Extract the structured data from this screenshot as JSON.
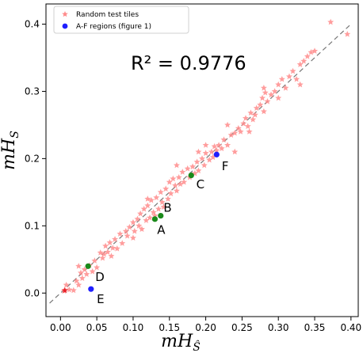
{
  "chart_data": {
    "type": "scatter",
    "xlabel": "mH_Ŝ",
    "ylabel": "mH_S",
    "xlim": [
      -0.02,
      0.41
    ],
    "ylim": [
      -0.035,
      0.43
    ],
    "xticks": [
      "0.00",
      "0.05",
      "0.10",
      "0.15",
      "0.20",
      "0.25",
      "0.30",
      "0.35",
      "0.40"
    ],
    "yticks": [
      "0.0",
      "0.1",
      "0.2",
      "0.3",
      "0.4"
    ],
    "annotation": "R² = 0.9776",
    "legend": {
      "placement": "top-left",
      "entries": [
        "Random test tiles",
        "A-F regions (figure 1)"
      ]
    },
    "reference_line": {
      "from": [
        -0.015,
        -0.015
      ],
      "to": [
        0.4,
        0.4
      ],
      "style": "dashed",
      "color": "#777777"
    },
    "series": [
      {
        "name": "Random test tiles",
        "marker": "star",
        "color": "#ff8c8c",
        "points": [
          [
            0.005,
            0.003
          ],
          [
            0.008,
            0.012
          ],
          [
            0.012,
            0.005
          ],
          [
            0.018,
            0.004
          ],
          [
            0.022,
            0.018
          ],
          [
            0.025,
            0.012
          ],
          [
            0.028,
            0.03
          ],
          [
            0.03,
            0.022
          ],
          [
            0.033,
            0.035
          ],
          [
            0.036,
            0.028
          ],
          [
            0.04,
            0.041
          ],
          [
            0.044,
            0.032
          ],
          [
            0.047,
            0.048
          ],
          [
            0.05,
            0.038
          ],
          [
            0.055,
            0.06
          ],
          [
            0.058,
            0.052
          ],
          [
            0.062,
            0.07
          ],
          [
            0.065,
            0.061
          ],
          [
            0.068,
            0.075
          ],
          [
            0.072,
            0.067
          ],
          [
            0.075,
            0.08
          ],
          [
            0.078,
            0.066
          ],
          [
            0.082,
            0.088
          ],
          [
            0.085,
            0.074
          ],
          [
            0.09,
            0.092
          ],
          [
            0.092,
            0.085
          ],
          [
            0.095,
            0.098
          ],
          [
            0.1,
            0.105
          ],
          [
            0.102,
            0.092
          ],
          [
            0.106,
            0.11
          ],
          [
            0.108,
            0.1
          ],
          [
            0.11,
            0.118
          ],
          [
            0.112,
            0.095
          ],
          [
            0.115,
            0.125
          ],
          [
            0.118,
            0.108
          ],
          [
            0.12,
            0.13
          ],
          [
            0.123,
            0.112
          ],
          [
            0.125,
            0.138
          ],
          [
            0.128,
            0.12
          ],
          [
            0.13,
            0.115
          ],
          [
            0.132,
            0.142
          ],
          [
            0.135,
            0.125
          ],
          [
            0.138,
            0.15
          ],
          [
            0.14,
            0.135
          ],
          [
            0.142,
            0.128
          ],
          [
            0.145,
            0.155
          ],
          [
            0.148,
            0.14
          ],
          [
            0.15,
            0.165
          ],
          [
            0.152,
            0.148
          ],
          [
            0.155,
            0.17
          ],
          [
            0.158,
            0.16
          ],
          [
            0.16,
            0.152
          ],
          [
            0.163,
            0.172
          ],
          [
            0.165,
            0.162
          ],
          [
            0.168,
            0.18
          ],
          [
            0.17,
            0.165
          ],
          [
            0.175,
            0.185
          ],
          [
            0.178,
            0.172
          ],
          [
            0.182,
            0.188
          ],
          [
            0.185,
            0.178
          ],
          [
            0.188,
            0.195
          ],
          [
            0.19,
            0.182
          ],
          [
            0.195,
            0.2
          ],
          [
            0.198,
            0.19
          ],
          [
            0.2,
            0.208
          ],
          [
            0.205,
            0.198
          ],
          [
            0.208,
            0.21
          ],
          [
            0.21,
            0.202
          ],
          [
            0.212,
            0.218
          ],
          [
            0.215,
            0.212
          ],
          [
            0.218,
            0.22
          ],
          [
            0.222,
            0.215
          ],
          [
            0.225,
            0.228
          ],
          [
            0.23,
            0.22
          ],
          [
            0.235,
            0.235
          ],
          [
            0.24,
            0.238
          ],
          [
            0.245,
            0.245
          ],
          [
            0.248,
            0.24
          ],
          [
            0.252,
            0.252
          ],
          [
            0.255,
            0.26
          ],
          [
            0.258,
            0.248
          ],
          [
            0.262,
            0.268
          ],
          [
            0.265,
            0.258
          ],
          [
            0.268,
            0.265
          ],
          [
            0.27,
            0.275
          ],
          [
            0.275,
            0.28
          ],
          [
            0.278,
            0.29
          ],
          [
            0.28,
            0.27
          ],
          [
            0.282,
            0.298
          ],
          [
            0.285,
            0.285
          ],
          [
            0.29,
            0.295
          ],
          [
            0.295,
            0.3
          ],
          [
            0.3,
            0.31
          ],
          [
            0.305,
            0.318
          ],
          [
            0.31,
            0.305
          ],
          [
            0.315,
            0.322
          ],
          [
            0.32,
            0.33
          ],
          [
            0.325,
            0.318
          ],
          [
            0.33,
            0.34
          ],
          [
            0.335,
            0.345
          ],
          [
            0.34,
            0.352
          ],
          [
            0.345,
            0.358
          ],
          [
            0.35,
            0.36
          ],
          [
            0.372,
            0.403
          ],
          [
            0.395,
            0.385
          ],
          [
            0.025,
            0.04
          ],
          [
            0.06,
            0.058
          ],
          [
            0.07,
            0.055
          ],
          [
            0.1,
            0.082
          ],
          [
            0.12,
            0.14
          ],
          [
            0.16,
            0.19
          ],
          [
            0.2,
            0.22
          ],
          [
            0.24,
            0.21
          ],
          [
            0.28,
            0.305
          ],
          [
            0.3,
            0.29
          ],
          [
            0.33,
            0.31
          ],
          [
            0.19,
            0.21
          ],
          [
            0.23,
            0.25
          ],
          [
            0.26,
            0.24
          ]
        ]
      },
      {
        "name": "A-F regions (figure 1)",
        "marker": "circle",
        "color": "#1f1fff",
        "points": [
          [
            0.042,
            0.006
          ],
          [
            0.215,
            0.206
          ]
        ]
      },
      {
        "name": "A-F regions (figure 1)",
        "marker": "circle",
        "color": "#1a8a1a",
        "points": [
          [
            0.038,
            0.04
          ],
          [
            0.13,
            0.11
          ],
          [
            0.138,
            0.115
          ],
          [
            0.18,
            0.175
          ]
        ]
      },
      {
        "name": "Random test tiles",
        "marker": "star",
        "color": "#e8222a",
        "points": [
          [
            0.006,
            0.004
          ]
        ]
      }
    ],
    "point_labels": [
      {
        "text": "A",
        "x": 0.133,
        "y": 0.095
      },
      {
        "text": "B",
        "x": 0.142,
        "y": 0.128
      },
      {
        "text": "C",
        "x": 0.187,
        "y": 0.163
      },
      {
        "text": "D",
        "x": 0.048,
        "y": 0.025
      },
      {
        "text": "E",
        "x": 0.05,
        "y": -0.008
      },
      {
        "text": "F",
        "x": 0.222,
        "y": 0.19
      }
    ]
  }
}
